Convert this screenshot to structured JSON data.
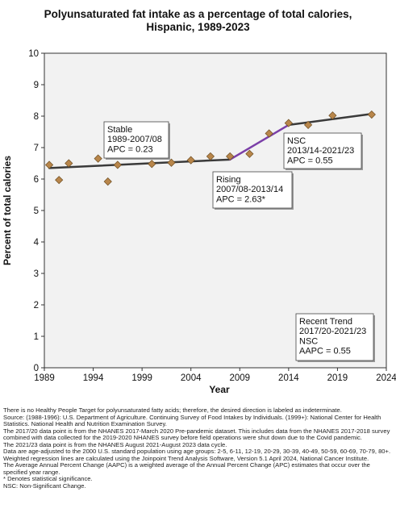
{
  "chart_data": {
    "type": "line",
    "title": "Polyunsaturated fat intake as a percentage of total calories,",
    "subtitle": "Hispanic,  1989-2023",
    "xlabel": "Year",
    "ylabel": "Percent of total calories",
    "xlim": [
      1989,
      2024
    ],
    "ylim": [
      0,
      10
    ],
    "x_ticks": [
      1989,
      1994,
      1999,
      2004,
      2009,
      2014,
      2019,
      2024
    ],
    "y_ticks": [
      0,
      1,
      2,
      3,
      4,
      5,
      6,
      7,
      8,
      9,
      10
    ],
    "grid": false,
    "colors": {
      "points": "#b8864b",
      "trend": "#3a3a3a",
      "rising": "#7b3fa8",
      "plot_bg": "#f2f2f2"
    },
    "points": [
      {
        "x": 1989.5,
        "y": 6.45
      },
      {
        "x": 1990.5,
        "y": 5.97
      },
      {
        "x": 1991.5,
        "y": 6.5
      },
      {
        "x": 1994.5,
        "y": 6.65
      },
      {
        "x": 1995.5,
        "y": 5.92
      },
      {
        "x": 1996.5,
        "y": 6.45
      },
      {
        "x": 2000,
        "y": 6.48
      },
      {
        "x": 2002,
        "y": 6.52
      },
      {
        "x": 2004,
        "y": 6.6
      },
      {
        "x": 2006,
        "y": 6.72
      },
      {
        "x": 2008,
        "y": 6.72
      },
      {
        "x": 2010,
        "y": 6.8
      },
      {
        "x": 2012,
        "y": 7.45
      },
      {
        "x": 2014,
        "y": 7.78
      },
      {
        "x": 2016,
        "y": 7.72
      },
      {
        "x": 2018.5,
        "y": 8.02
      },
      {
        "x": 2022.5,
        "y": 8.05
      }
    ],
    "segments": [
      {
        "label": "Stable 1989-2007/08",
        "from": [
          1989.5,
          6.35
        ],
        "to": [
          2008,
          6.62
        ],
        "color_key": "trend"
      },
      {
        "label": "Rising 2007/08-2013/14",
        "from": [
          2008,
          6.62
        ],
        "to": [
          2014,
          7.72
        ],
        "color_key": "rising"
      },
      {
        "label": "NSC 2013/14-2021/23",
        "from": [
          2014,
          7.72
        ],
        "to": [
          2022.5,
          8.07
        ],
        "color_key": "trend"
      }
    ],
    "annotations": [
      {
        "id": "stable",
        "lines": [
          "Stable",
          "1989-2007/08",
          "APC =  0.23"
        ]
      },
      {
        "id": "rising",
        "lines": [
          "Rising",
          "2007/08-2013/14",
          "APC =  2.63*"
        ]
      },
      {
        "id": "nsc",
        "lines": [
          "NSC",
          "2013/14-2021/23",
          "APC =  0.55"
        ]
      },
      {
        "id": "recent",
        "lines": [
          "Recent Trend",
          "2017/20-2021/23",
          "NSC",
          "AAPC =  0.55"
        ]
      }
    ]
  },
  "footnotes": [
    "There is no Healthy People Target for polyunsaturated fatty acids; therefore, the desired direction is labeled as indeterminate.",
    "Source: (1988-1996): U.S. Department of Agriculture. Continuing Survey of Food Intakes by Individuals. (1999+): National Center for Health Statistics. National Health and Nutrition Examination Survey.",
    "The 2017/20 data point is from the NHANES 2017-March 2020 Pre-pandemic dataset. This includes data from the NHANES 2017-2018 survey combined with data collected for the 2019-2020 NHANES survey before field operations were shut down due to the Covid pandemic.",
    "The 2021/23 data point is from the NHANES August 2021-August 2023 data cycle.",
    "Data are age-adjusted to the 2000 U.S. standard population using age groups: 2-5, 6-11, 12-19, 20-29, 30-39, 40-49, 50-59, 60-69, 70-79, 80+.",
    "Weighted regression lines are calculated using the Joinpoint Trend Analysis Software, Version 5.1 April 2024, National Cancer Institute.",
    "The Average Annual Percent Change (AAPC) is a weighted average of the Annual Percent Change (APC) estimates that occur over the specified year range.",
    "* Denotes statistical significance.",
    "NSC: Non-Significant Change."
  ]
}
